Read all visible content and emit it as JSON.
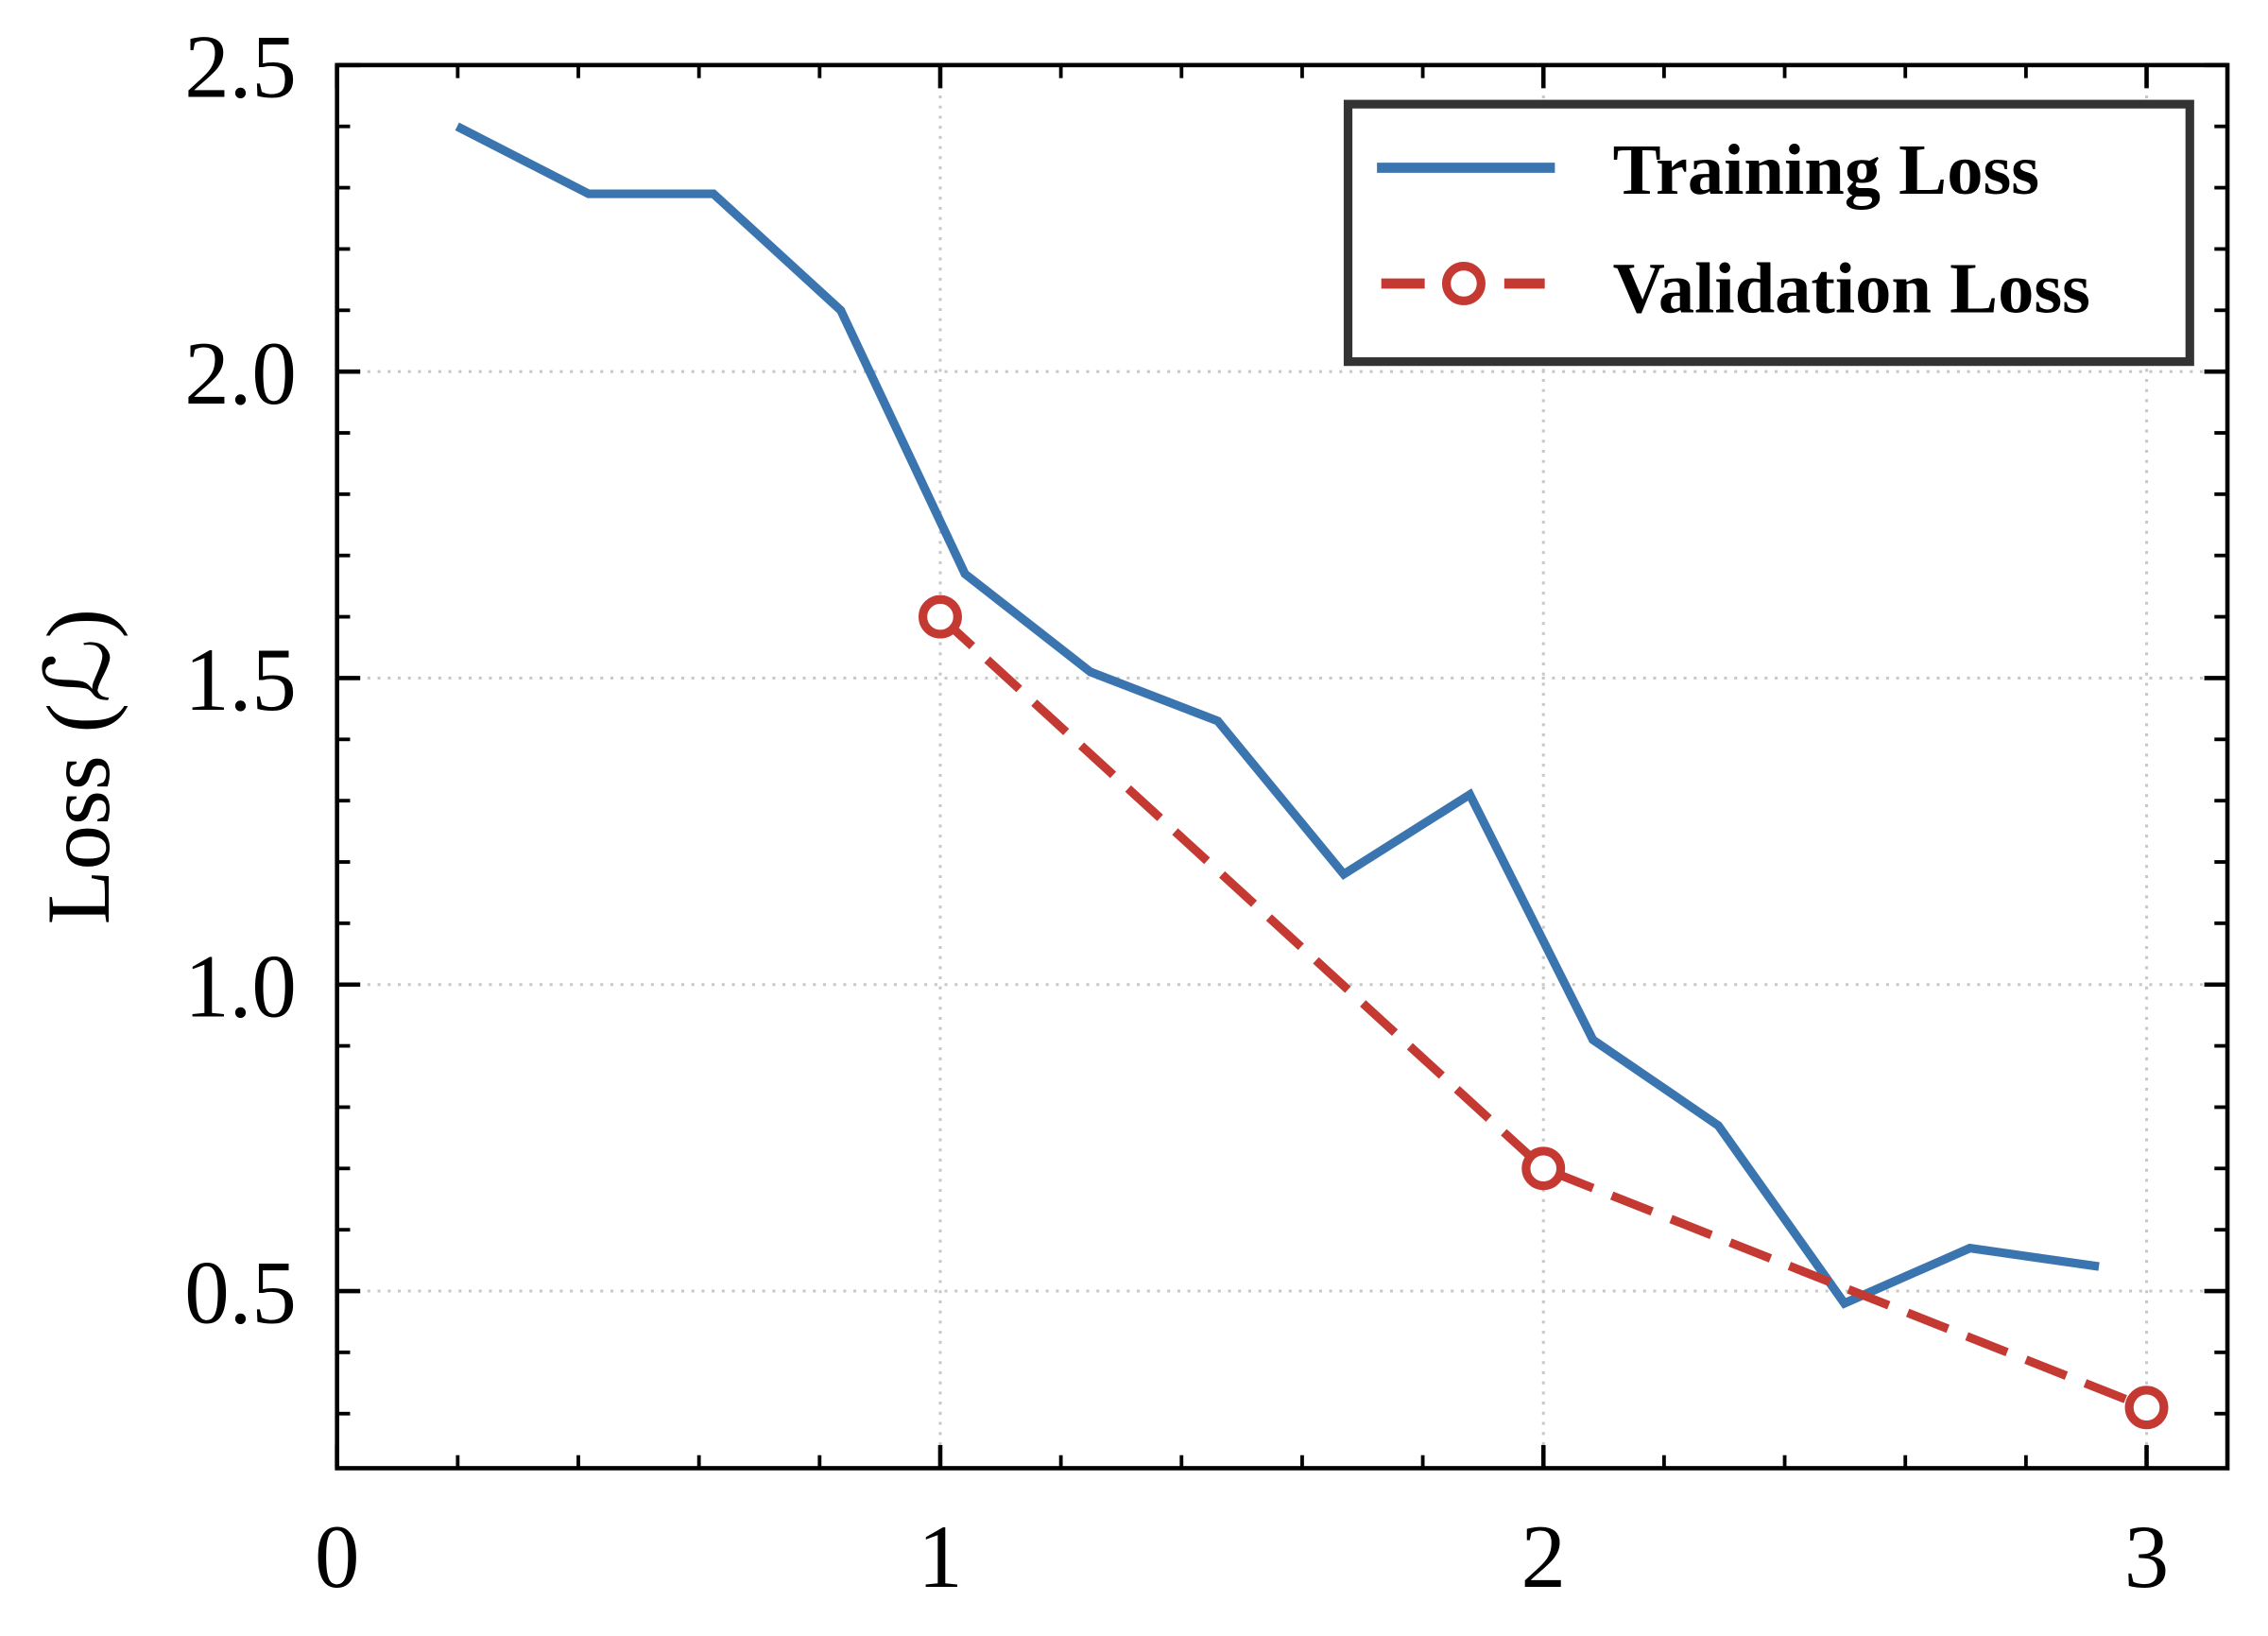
{
  "chart_data": {
    "type": "line",
    "title": "",
    "xlabel": "",
    "ylabel": "Loss (ℒ)",
    "xlim": [
      0,
      3.134
    ],
    "ylim": [
      0.211,
      2.5
    ],
    "x_ticks": [
      0,
      1,
      2,
      3
    ],
    "x_tick_labels": [
      "0",
      "1",
      "2",
      "3"
    ],
    "x_minor_step": 0.2,
    "y_ticks": [
      0.5,
      1.0,
      1.5,
      2.0,
      2.5
    ],
    "y_tick_labels": [
      "0.5",
      "1.0",
      "1.5",
      "2.0",
      "2.5"
    ],
    "y_minor_step": 0.1,
    "grid": true,
    "ticks_direction": "in",
    "legend_placement": "top-right",
    "series": [
      {
        "name": "Training Loss",
        "color": "#3b75af",
        "style": "solid",
        "marker": "none",
        "x": [
          0.199,
          0.417,
          0.624,
          0.835,
          1.041,
          1.249,
          1.46,
          1.669,
          1.878,
          2.082,
          2.29,
          2.499,
          2.707,
          2.921
        ],
        "y": [
          2.4,
          2.29,
          2.29,
          2.1,
          1.67,
          1.51,
          1.43,
          1.18,
          1.31,
          0.91,
          0.77,
          0.48,
          0.57,
          0.54
        ]
      },
      {
        "name": "Validation Loss",
        "color": "#c43a33",
        "style": "dashed",
        "marker": "open-circle",
        "x": [
          1,
          2,
          3
        ],
        "y": [
          1.6,
          0.7,
          0.31
        ]
      }
    ]
  }
}
